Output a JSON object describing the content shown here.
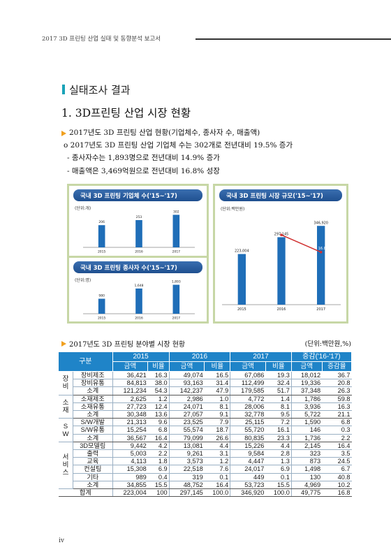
{
  "header": {
    "text": "2017 3D 프린팅 산업 실태 및 동향분석 보고서"
  },
  "section": {
    "title": "실태조사 결과"
  },
  "subsection": {
    "title": "1. 3D프린팅 산업 시장 현황"
  },
  "bullets": {
    "main": "2017년도 3D 프린팅 산업 현황(기업체수, 종사자 수, 매출액)",
    "line1": "o 2017년도 3D 프린팅 산업 기업체 수는 302개로 전년대비 19.5% 증가",
    "line2": "- 종사자수는 1,893명으로 전년대비 14.9% 증가",
    "line3": "- 매출액은 3,469억원으로 전년대비 16.8% 성장"
  },
  "chart_data": [
    {
      "type": "bar",
      "title": "국내 3D 프린팅 기업체 수('15~'17)",
      "unit": "(단위:개)",
      "categories": [
        "2015",
        "2016",
        "2017"
      ],
      "values": [
        206,
        253,
        302
      ],
      "value_labels": [
        "206",
        "253",
        "302"
      ],
      "ylim": [
        0,
        350
      ]
    },
    {
      "type": "bar",
      "title": "국내 3D 프린팅 종사자 수('15~'17)",
      "unit": "(단위:명)",
      "categories": [
        "2015",
        "2016",
        "2017"
      ],
      "values": [
        980,
        1648,
        1893
      ],
      "value_labels": [
        "980",
        "1,648",
        "1,893"
      ],
      "ylim": [
        0,
        2100
      ]
    },
    {
      "type": "bar",
      "title": "국내 3D 프린팅 시장 규모('15~'17)",
      "unit": "(단위:백만원)",
      "categories": [
        "2015",
        "2016",
        "2017"
      ],
      "values": [
        223004,
        297145,
        346920
      ],
      "value_labels": [
        "223,004",
        "297,145",
        "346,920"
      ],
      "growth_line": {
        "categories": [
          "2016",
          "2017"
        ],
        "values": [
          33.2,
          16.8
        ],
        "labels": [
          "33.2%",
          "16.8%"
        ]
      },
      "ylim": [
        0,
        400000
      ]
    }
  ],
  "table": {
    "caption": "2017년도 3D 프린팅 분야별 시장 현황",
    "unit": "(단위:백만원,%)",
    "header": {
      "category": "구분",
      "years": [
        "2015",
        "2016",
        "2017",
        "증감('16-'17)"
      ],
      "sub": [
        "금액",
        "비율",
        "금액",
        "비율",
        "금액",
        "비율",
        "금액",
        "증감율"
      ]
    },
    "groups": [
      {
        "name": "장비",
        "rows": [
          {
            "item": "장비제조",
            "vals": [
              "36,421",
              "16.3",
              "49,074",
              "16.5",
              "67,086",
              "19.3",
              "18,012",
              "36.7"
            ]
          },
          {
            "item": "장비유통",
            "vals": [
              "84,813",
              "38.0",
              "93,163",
              "31.4",
              "112,499",
              "32.4",
              "19,336",
              "20.8"
            ]
          },
          {
            "item": "소계",
            "vals": [
              "121,234",
              "54.3",
              "142,237",
              "47.9",
              "179,585",
              "51.7",
              "37,348",
              "26.3"
            ]
          }
        ]
      },
      {
        "name": "소재",
        "rows": [
          {
            "item": "소재제조",
            "vals": [
              "2,625",
              "1.2",
              "2,986",
              "1.0",
              "4,772",
              "1.4",
              "1,786",
              "59.8"
            ]
          },
          {
            "item": "소재유통",
            "vals": [
              "27,723",
              "12.4",
              "24,071",
              "8.1",
              "28,006",
              "8.1",
              "3,936",
              "16.3"
            ]
          },
          {
            "item": "소계",
            "vals": [
              "30,348",
              "13.6",
              "27,057",
              "9.1",
              "32,778",
              "9.5",
              "5,722",
              "21.1"
            ]
          }
        ]
      },
      {
        "name": "SW",
        "rows": [
          {
            "item": "S/W개발",
            "vals": [
              "21,313",
              "9.6",
              "23,525",
              "7.9",
              "25,115",
              "7.2",
              "1,590",
              "6.8"
            ]
          },
          {
            "item": "S/W유통",
            "vals": [
              "15,254",
              "6.8",
              "55,574",
              "18.7",
              "55,720",
              "16.1",
              "146",
              "0.3"
            ]
          },
          {
            "item": "소계",
            "vals": [
              "36,567",
              "16.4",
              "79,099",
              "26.6",
              "80,835",
              "23.3",
              "1,736",
              "2.2"
            ]
          }
        ]
      },
      {
        "name": "서비스",
        "rows": [
          {
            "item": "3D모델링",
            "vals": [
              "9,442",
              "4.2",
              "13,081",
              "4.4",
              "15,226",
              "4.4",
              "2,145",
              "16.4"
            ]
          },
          {
            "item": "출력",
            "vals": [
              "5,003",
              "2.2",
              "9,261",
              "3.1",
              "9,584",
              "2.8",
              "323",
              "3.5"
            ]
          },
          {
            "item": "교육",
            "vals": [
              "4,113",
              "1.8",
              "3,573",
              "1.2",
              "4,447",
              "1.3",
              "873",
              "24.5"
            ]
          },
          {
            "item": "컨설팅",
            "vals": [
              "15,308",
              "6.9",
              "22,518",
              "7.6",
              "24,017",
              "6.9",
              "1,498",
              "6.7"
            ]
          },
          {
            "item": "기타",
            "vals": [
              "989",
              "0.4",
              "319",
              "0.1",
              "449",
              "0.1",
              "130",
              "40.8"
            ]
          },
          {
            "item": "소계",
            "vals": [
              "34,855",
              "15.5",
              "48,752",
              "16.4",
              "53,723",
              "15.5",
              "4,969",
              "10.2"
            ]
          }
        ]
      }
    ],
    "total": {
      "item": "합계",
      "vals": [
        "223,004",
        "100",
        "297,145",
        "100.0",
        "346,920",
        "100.0",
        "49,775",
        "16.8"
      ]
    }
  },
  "page_number": "iv",
  "colors": {
    "bar": "#1f6eb8",
    "header_bg": "#1f84c8",
    "accent": "#19a3b8",
    "bullet": "#f0a020",
    "growth_line": "#d03030"
  }
}
